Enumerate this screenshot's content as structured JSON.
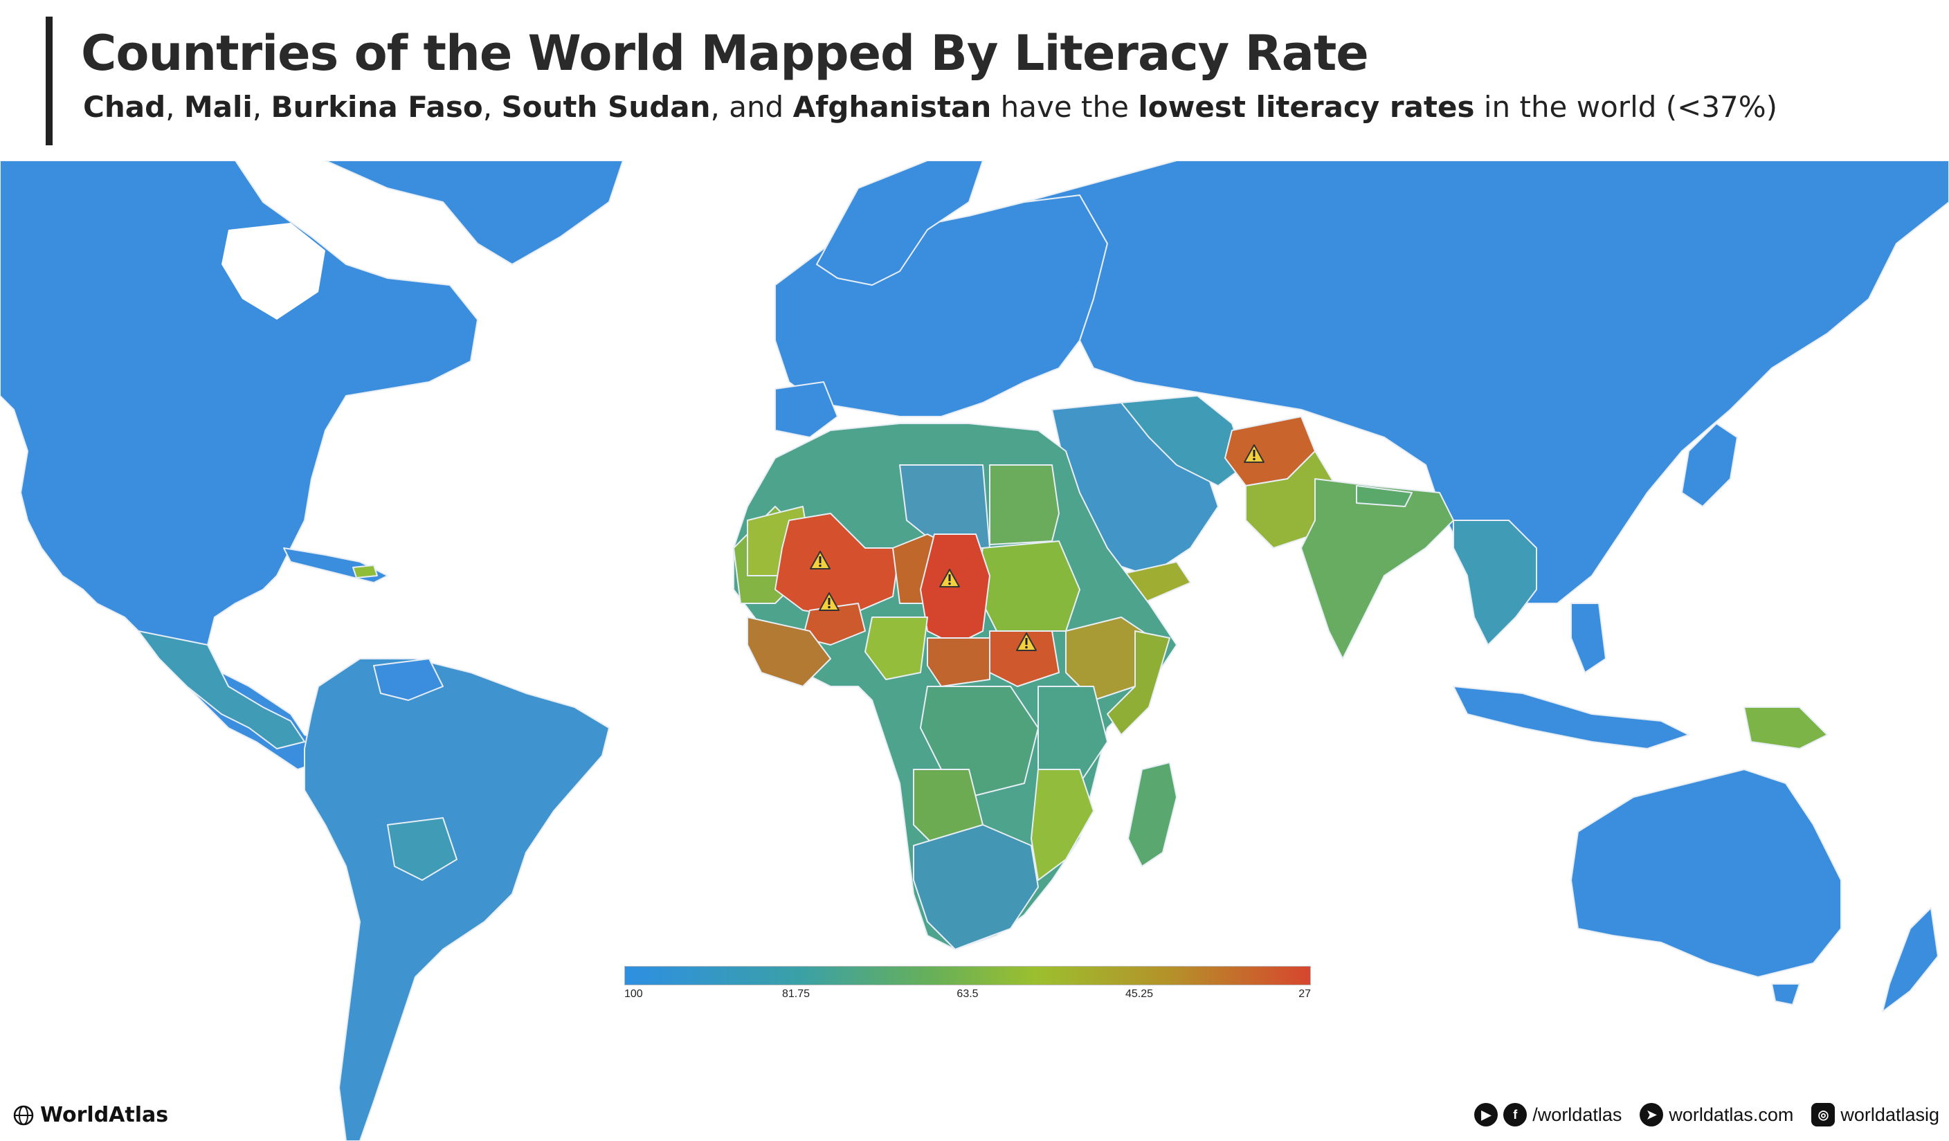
{
  "header": {
    "title": "Countries of the World Mapped By Literacy Rate",
    "subtitle_parts": [
      {
        "text": "Chad",
        "bold": true
      },
      {
        "text": ", ",
        "bold": false
      },
      {
        "text": "Mali",
        "bold": true
      },
      {
        "text": ", ",
        "bold": false
      },
      {
        "text": "Burkina Faso",
        "bold": true
      },
      {
        "text": ", ",
        "bold": false
      },
      {
        "text": "South Sudan",
        "bold": true
      },
      {
        "text": ", and ",
        "bold": false
      },
      {
        "text": "Afghanistan",
        "bold": true
      },
      {
        "text": " have the ",
        "bold": false
      },
      {
        "text": "lowest literacy rates",
        "bold": true
      },
      {
        "text": " in the world (<37%)",
        "bold": false
      }
    ]
  },
  "legend": {
    "labels": [
      "100",
      "81.75",
      "63.5",
      "45.25",
      "27"
    ],
    "min": 27,
    "max": 100,
    "colors": [
      "#2e8fe2",
      "#3aa0a8",
      "#68b058",
      "#9cbf2e",
      "#b5902a",
      "#d7462e"
    ]
  },
  "map": {
    "ocean_color": "#ffffff",
    "land_default_color": "#3b8ede",
    "border_color": "#e8eef5",
    "warning_icon": "warning-triangle-icon",
    "lowest_literacy_countries": [
      "Chad",
      "Mali",
      "Burkina Faso",
      "South Sudan",
      "Afghanistan"
    ]
  },
  "footer": {
    "brand": "WorldAtlas",
    "brand_icon": "globe-icon",
    "social": [
      {
        "icons": [
          "youtube-icon",
          "facebook-icon"
        ],
        "text": "/worldatlas"
      },
      {
        "icons": [
          "cursor-icon"
        ],
        "text": "worldatlas.com"
      },
      {
        "icons": [
          "instagram-icon"
        ],
        "text": "worldatlasig"
      }
    ]
  }
}
